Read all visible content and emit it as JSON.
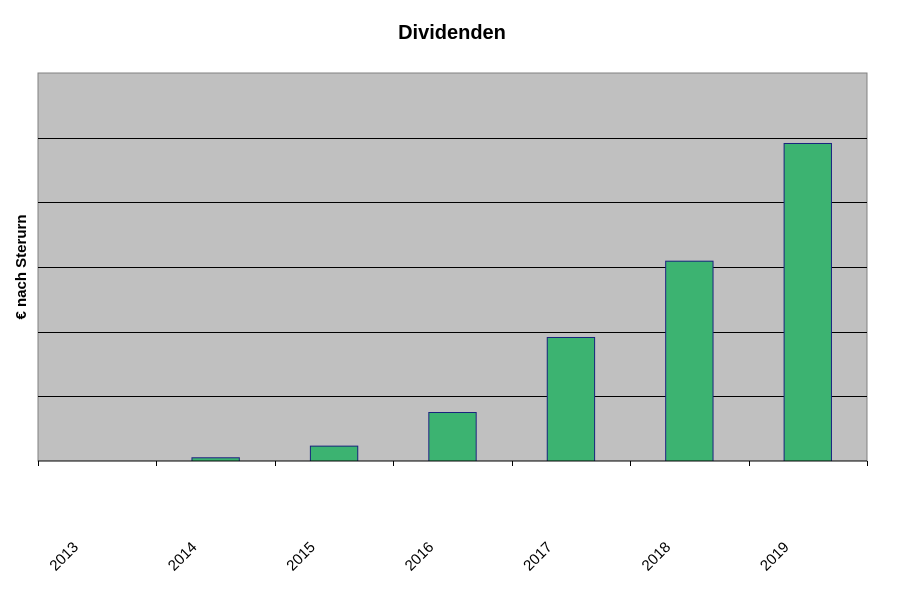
{
  "chart_data": {
    "type": "bar",
    "title": "Dividenden",
    "xlabel": "",
    "ylabel": "€ nach Sterurn",
    "categories": [
      "2013",
      "2014",
      "2015",
      "2016",
      "2017",
      "2018",
      "2019"
    ],
    "values": [
      0,
      0.05,
      0.23,
      0.75,
      1.91,
      3.09,
      4.91
    ],
    "ylim": [
      0,
      6
    ],
    "gridlines": [
      1,
      2,
      3,
      4,
      5,
      6
    ],
    "grid": true,
    "legend": "none",
    "colors": {
      "plot_background": "#c0c0c0",
      "bar_fill": "#3cb371",
      "bar_stroke": "#1a237e",
      "grid": "#000000"
    }
  }
}
